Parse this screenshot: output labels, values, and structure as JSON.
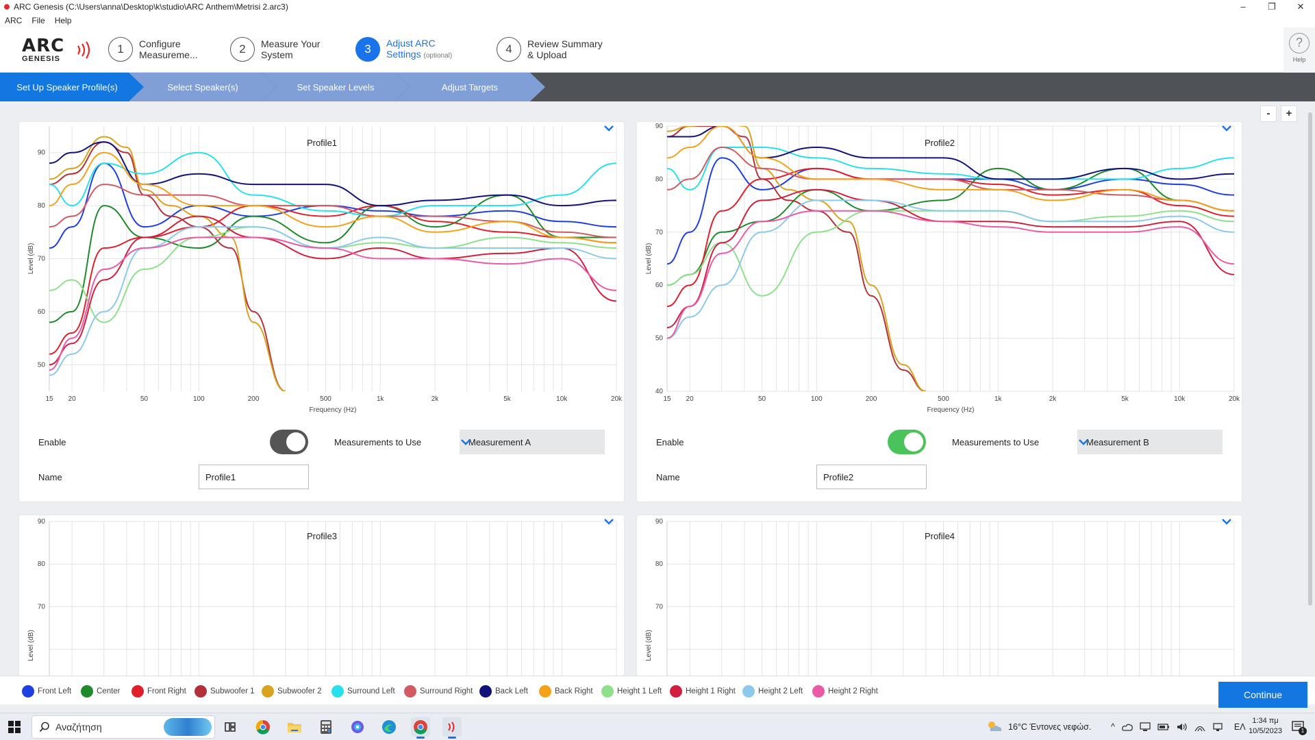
{
  "window": {
    "title": "ARC Genesis (C:\\Users\\anna\\Desktop\\k\\studio\\ARC Anthem\\Metrisi 2.arc3)",
    "minimize": "–",
    "restore": "❐",
    "close": "✕"
  },
  "menu": [
    "ARC",
    "File",
    "Help"
  ],
  "logo": {
    "arc": "ARC",
    "genesis": "GENESIS"
  },
  "steps": [
    {
      "num": "1",
      "line1": "Configure",
      "line2": "Measureme..."
    },
    {
      "num": "2",
      "line1": "Measure Your",
      "line2": "System"
    },
    {
      "num": "3",
      "line1": "Adjust ARC",
      "line2": "Settings",
      "note": "(optional)"
    },
    {
      "num": "4",
      "line1": "Review Summary",
      "line2": "& Upload"
    }
  ],
  "help": {
    "glyph": "?",
    "label": "Help"
  },
  "substeps": [
    "Set Up Speaker Profile(s)",
    "Select Speaker(s)",
    "Set Speaker Levels",
    "Adjust Targets"
  ],
  "zoom": {
    "minus": "-",
    "plus": "+"
  },
  "colors": {
    "accent": "#1a73e8",
    "front_left": "#1f3fe0",
    "center": "#1e8a2a",
    "front_right": "#e0202a",
    "subwoofer_1": "#b3313a",
    "subwoofer_2": "#d9a21f",
    "surround_left": "#29e0ea",
    "surround_right": "#cf5b63",
    "back_left": "#12127a",
    "back_right": "#f4a21a",
    "height_1_left": "#8ee08a",
    "height_1_right": "#d0203e",
    "height_2_left": "#8cc9ea",
    "height_2_right": "#ea5aa6"
  },
  "controls": {
    "enable_label": "Enable",
    "measurements_label": "Measurements to Use",
    "name_label": "Name"
  },
  "profiles": [
    {
      "title": "Profile1",
      "enabled": false,
      "measurement": "Measurement A",
      "name": "Profile1"
    },
    {
      "title": "Profile2",
      "enabled": true,
      "measurement": "Measurement B",
      "name": "Profile2"
    },
    {
      "title": "Profile3"
    },
    {
      "title": "Profile4"
    }
  ],
  "chart_data": [
    {
      "type": "line",
      "title": "Profile1",
      "xlabel": "Frequency (Hz)",
      "ylabel": "Level (dB)",
      "xscale": "log",
      "xlim": [
        15,
        20000
      ],
      "ylim": [
        45,
        95
      ],
      "yticks": [
        50,
        60,
        70,
        80,
        90
      ],
      "xticks": [
        "15",
        "20",
        "50",
        "100",
        "200",
        "500",
        "1k",
        "2k",
        "5k",
        "10k",
        "20k"
      ],
      "grid": true,
      "series": [
        {
          "name": "Front Left",
          "color": "#1f3fe0",
          "x": [
            15,
            20,
            30,
            50,
            100,
            200,
            500,
            1000,
            2000,
            5000,
            10000,
            20000
          ],
          "y": [
            72,
            76,
            88,
            76,
            80,
            78,
            80,
            79,
            78,
            79,
            77,
            76
          ]
        },
        {
          "name": "Center",
          "color": "#1e8a2a",
          "x": [
            15,
            20,
            30,
            50,
            100,
            200,
            500,
            1000,
            2000,
            5000,
            10000,
            20000
          ],
          "y": [
            58,
            60,
            80,
            74,
            72,
            78,
            73,
            80,
            76,
            82,
            74,
            74
          ]
        },
        {
          "name": "Front Right",
          "color": "#e0202a",
          "x": [
            15,
            20,
            30,
            50,
            100,
            200,
            500,
            1000,
            2000,
            5000,
            10000,
            20000
          ],
          "y": [
            52,
            56,
            72,
            74,
            76,
            80,
            78,
            80,
            77,
            75,
            74,
            73
          ]
        },
        {
          "name": "Subwoofer 1",
          "color": "#b3313a",
          "x": [
            15,
            20,
            30,
            40,
            50,
            70,
            100,
            150,
            200,
            300
          ],
          "y": [
            84,
            86,
            92,
            90,
            82,
            78,
            76,
            72,
            60,
            45
          ]
        },
        {
          "name": "Subwoofer 2",
          "color": "#d9a21f",
          "x": [
            15,
            20,
            30,
            40,
            50,
            70,
            100,
            150,
            200,
            300
          ],
          "y": [
            85,
            87,
            93,
            91,
            83,
            80,
            78,
            74,
            58,
            45
          ]
        },
        {
          "name": "Surround Left",
          "color": "#29e0ea",
          "x": [
            15,
            20,
            30,
            50,
            100,
            200,
            500,
            1000,
            2000,
            5000,
            10000,
            20000
          ],
          "y": [
            84,
            80,
            88,
            86,
            90,
            82,
            79,
            78,
            80,
            80,
            82,
            88
          ]
        },
        {
          "name": "Surround Right",
          "color": "#cf5b63",
          "x": [
            15,
            20,
            30,
            50,
            100,
            200,
            500,
            1000,
            2000,
            5000,
            10000,
            20000
          ],
          "y": [
            76,
            78,
            84,
            82,
            82,
            80,
            80,
            78,
            78,
            77,
            75,
            74
          ]
        },
        {
          "name": "Back Left",
          "color": "#12127a",
          "x": [
            15,
            20,
            30,
            50,
            100,
            200,
            500,
            1000,
            2000,
            5000,
            10000,
            20000
          ],
          "y": [
            88,
            90,
            92,
            84,
            86,
            84,
            84,
            80,
            81,
            82,
            80,
            81
          ]
        },
        {
          "name": "Back Right",
          "color": "#f4a21a",
          "x": [
            15,
            20,
            30,
            50,
            100,
            200,
            500,
            1000,
            2000,
            5000,
            10000,
            20000
          ],
          "y": [
            80,
            84,
            90,
            84,
            80,
            80,
            76,
            78,
            75,
            77,
            74,
            73
          ]
        },
        {
          "name": "Height 1 Left",
          "color": "#8ee08a",
          "x": [
            15,
            20,
            30,
            50,
            100,
            200,
            500,
            1000,
            2000,
            5000,
            10000,
            20000
          ],
          "y": [
            64,
            66,
            58,
            68,
            74,
            76,
            72,
            73,
            72,
            74,
            73,
            72
          ]
        },
        {
          "name": "Height 1 Right",
          "color": "#d0203e",
          "x": [
            15,
            20,
            30,
            50,
            100,
            200,
            500,
            1000,
            2000,
            5000,
            10000,
            20000
          ],
          "y": [
            50,
            54,
            66,
            74,
            78,
            74,
            70,
            72,
            70,
            71,
            72,
            62
          ]
        },
        {
          "name": "Height 2 Left",
          "color": "#8cc9ea",
          "x": [
            15,
            20,
            30,
            50,
            100,
            200,
            500,
            1000,
            2000,
            5000,
            10000,
            20000
          ],
          "y": [
            48,
            52,
            60,
            72,
            76,
            76,
            72,
            74,
            72,
            72,
            72,
            70
          ]
        },
        {
          "name": "Height 2 Right",
          "color": "#ea5aa6",
          "x": [
            15,
            20,
            30,
            50,
            100,
            200,
            500,
            1000,
            2000,
            5000,
            10000,
            20000
          ],
          "y": [
            49,
            55,
            68,
            72,
            74,
            74,
            72,
            70,
            70,
            69,
            70,
            64
          ]
        }
      ]
    },
    {
      "type": "line",
      "title": "Profile2",
      "xlabel": "Frequency (Hz)",
      "ylabel": "Level (dB)",
      "xscale": "log",
      "xlim": [
        15,
        20000
      ],
      "ylim": [
        40,
        90
      ],
      "yticks": [
        40,
        50,
        60,
        70,
        80,
        90
      ],
      "xticks": [
        "15",
        "20",
        "50",
        "100",
        "200",
        "500",
        "1k",
        "2k",
        "5k",
        "10k",
        "20k"
      ],
      "grid": true,
      "series": [
        {
          "name": "Front Left",
          "color": "#1f3fe0",
          "x": [
            15,
            20,
            30,
            50,
            100,
            200,
            500,
            1000,
            2000,
            5000,
            10000,
            20000
          ],
          "y": [
            64,
            70,
            84,
            78,
            82,
            80,
            80,
            80,
            78,
            80,
            79,
            77
          ]
        },
        {
          "name": "Center",
          "color": "#1e8a2a",
          "x": [
            15,
            20,
            30,
            50,
            100,
            200,
            500,
            1000,
            2000,
            5000,
            10000,
            20000
          ],
          "y": [
            60,
            62,
            70,
            72,
            78,
            74,
            76,
            82,
            78,
            82,
            76,
            74
          ]
        },
        {
          "name": "Front Right",
          "color": "#e0202a",
          "x": [
            15,
            20,
            30,
            50,
            100,
            200,
            500,
            1000,
            2000,
            5000,
            10000,
            20000
          ],
          "y": [
            56,
            60,
            74,
            80,
            82,
            80,
            80,
            79,
            77,
            78,
            75,
            73
          ]
        },
        {
          "name": "Subwoofer 1",
          "color": "#b3313a",
          "x": [
            15,
            20,
            30,
            40,
            50,
            70,
            100,
            150,
            200,
            300,
            400
          ],
          "y": [
            88,
            90,
            90,
            88,
            80,
            76,
            74,
            70,
            58,
            44,
            40
          ]
        },
        {
          "name": "Subwoofer 2",
          "color": "#d9a21f",
          "x": [
            15,
            20,
            30,
            40,
            50,
            70,
            100,
            150,
            200,
            300,
            400
          ],
          "y": [
            89,
            90,
            91,
            90,
            82,
            78,
            76,
            72,
            60,
            45,
            40
          ]
        },
        {
          "name": "Surround Left",
          "color": "#29e0ea",
          "x": [
            15,
            20,
            30,
            50,
            100,
            200,
            500,
            1000,
            2000,
            5000,
            10000,
            20000
          ],
          "y": [
            82,
            78,
            86,
            86,
            84,
            82,
            81,
            80,
            80,
            80,
            82,
            84
          ]
        },
        {
          "name": "Surround Right",
          "color": "#cf5b63",
          "x": [
            15,
            20,
            30,
            50,
            100,
            200,
            500,
            1000,
            2000,
            5000,
            10000,
            20000
          ],
          "y": [
            78,
            80,
            86,
            82,
            80,
            80,
            80,
            78,
            78,
            77,
            76,
            74
          ]
        },
        {
          "name": "Back Left",
          "color": "#12127a",
          "x": [
            15,
            20,
            30,
            50,
            100,
            200,
            500,
            1000,
            2000,
            5000,
            10000,
            20000
          ],
          "y": [
            88,
            88,
            90,
            84,
            86,
            84,
            84,
            80,
            80,
            82,
            80,
            81
          ]
        },
        {
          "name": "Back Right",
          "color": "#f4a21a",
          "x": [
            15,
            20,
            30,
            50,
            100,
            200,
            500,
            1000,
            2000,
            5000,
            10000,
            20000
          ],
          "y": [
            84,
            86,
            90,
            84,
            80,
            80,
            78,
            78,
            76,
            78,
            76,
            74
          ]
        },
        {
          "name": "Height 1 Left",
          "color": "#8ee08a",
          "x": [
            15,
            20,
            30,
            50,
            100,
            200,
            500,
            1000,
            2000,
            5000,
            10000,
            20000
          ],
          "y": [
            60,
            62,
            68,
            58,
            70,
            74,
            74,
            74,
            72,
            73,
            74,
            72
          ]
        },
        {
          "name": "Height 1 Right",
          "color": "#d0203e",
          "x": [
            15,
            20,
            30,
            50,
            100,
            200,
            500,
            1000,
            2000,
            5000,
            10000,
            20000
          ],
          "y": [
            52,
            56,
            68,
            76,
            78,
            76,
            72,
            72,
            71,
            71,
            72,
            62
          ]
        },
        {
          "name": "Height 2 Left",
          "color": "#8cc9ea",
          "x": [
            15,
            20,
            30,
            50,
            100,
            200,
            500,
            1000,
            2000,
            5000,
            10000,
            20000
          ],
          "y": [
            50,
            54,
            60,
            70,
            76,
            76,
            74,
            74,
            72,
            72,
            73,
            70
          ]
        },
        {
          "name": "Height 2 Right",
          "color": "#ea5aa6",
          "x": [
            15,
            20,
            30,
            50,
            100,
            200,
            500,
            1000,
            2000,
            5000,
            10000,
            20000
          ],
          "y": [
            50,
            56,
            66,
            72,
            74,
            74,
            72,
            71,
            70,
            70,
            71,
            64
          ]
        }
      ]
    },
    {
      "type": "line",
      "title": "Profile3",
      "ylabel": "Level (dB)",
      "xscale": "log",
      "xlim": [
        15,
        20000
      ],
      "ylim": [
        40,
        90
      ],
      "yticks": [
        70,
        80,
        90
      ],
      "grid": true,
      "series": []
    },
    {
      "type": "line",
      "title": "Profile4",
      "ylabel": "Level (dB)",
      "xscale": "log",
      "xlim": [
        15,
        20000
      ],
      "ylim": [
        40,
        90
      ],
      "yticks": [
        70,
        80,
        90
      ],
      "grid": true,
      "series": []
    }
  ],
  "legend": [
    {
      "label": "Front Left",
      "color": "#1f3fe0"
    },
    {
      "label": "Center",
      "color": "#1e8a2a"
    },
    {
      "label": "Front Right",
      "color": "#e0202a"
    },
    {
      "label": "Subwoofer 1",
      "color": "#b3313a"
    },
    {
      "label": "Subwoofer 2",
      "color": "#d9a21f"
    },
    {
      "label": "Surround Left",
      "color": "#29e0ea"
    },
    {
      "label": "Surround Right",
      "color": "#cf5b63"
    },
    {
      "label": "Back Left",
      "color": "#12127a"
    },
    {
      "label": "Back Right",
      "color": "#f4a21a"
    },
    {
      "label": "Height 1 Left",
      "color": "#8ee08a"
    },
    {
      "label": "Height 1 Right",
      "color": "#d0203e"
    },
    {
      "label": "Height 2 Left",
      "color": "#8cc9ea"
    },
    {
      "label": "Height 2 Right",
      "color": "#ea5aa6"
    }
  ],
  "continue_label": "Continue",
  "taskbar": {
    "search_placeholder": "Αναζήτηση",
    "weather": "16°C  Έντονες νεφώσ.",
    "language": "ΕΛ",
    "time": "1:34 πμ",
    "date": "10/5/2023",
    "notifications": "1",
    "apps": [
      "task-view-icon",
      "chrome-icon",
      "file-explorer-icon",
      "calculator-icon",
      "copilot-icon",
      "edge-icon",
      "chrome-profile-icon",
      "arc-genesis-icon"
    ]
  }
}
